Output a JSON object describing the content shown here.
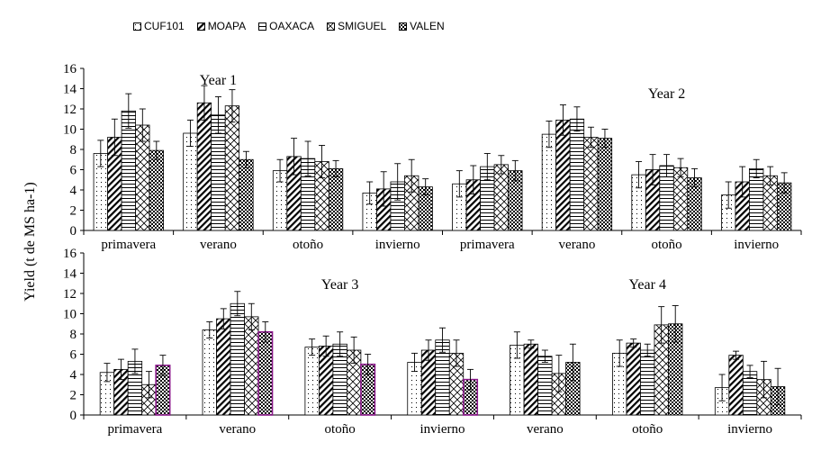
{
  "chart_data": {
    "type": "bar",
    "ylabel": "Yield (t de MS ha-1)",
    "ylim": [
      0,
      16
    ],
    "yticks": [
      0,
      2,
      4,
      6,
      8,
      10,
      12,
      14,
      16
    ],
    "legend": {
      "placement": "top",
      "series": [
        {
          "name": "CUF101",
          "pattern": "dots"
        },
        {
          "name": "MOAPA",
          "pattern": "diagonal"
        },
        {
          "name": "OAXACA",
          "pattern": "horizontal"
        },
        {
          "name": "SMIGUEL",
          "pattern": "crosshatch"
        },
        {
          "name": "VALEN",
          "pattern": "checker"
        }
      ]
    },
    "panels": [
      {
        "annotations": [
          {
            "text": "Year 1",
            "x_group": 1
          },
          {
            "text": "Year 2",
            "x_group": 6
          }
        ],
        "groups": [
          {
            "label": "primavera",
            "values": [
              7.6,
              9.2,
              11.8,
              10.4,
              7.9
            ],
            "errors": [
              1.3,
              1.8,
              1.7,
              1.6,
              0.9
            ]
          },
          {
            "label": "verano",
            "values": [
              9.6,
              12.6,
              11.4,
              12.3,
              7.0
            ],
            "errors": [
              1.3,
              1.7,
              1.8,
              1.6,
              0.8
            ]
          },
          {
            "label": "otoño",
            "values": [
              5.9,
              7.3,
              7.1,
              6.8,
              6.1
            ],
            "errors": [
              1.1,
              1.8,
              1.7,
              1.6,
              0.8
            ]
          },
          {
            "label": "invierno",
            "values": [
              3.7,
              4.1,
              4.8,
              5.4,
              4.3
            ],
            "errors": [
              1.1,
              1.7,
              1.8,
              1.6,
              0.8
            ]
          },
          {
            "label": "primavera",
            "values": [
              4.6,
              5.0,
              6.3,
              6.5,
              5.9
            ],
            "errors": [
              1.3,
              1.4,
              1.3,
              0.9,
              1.0
            ]
          },
          {
            "label": "verano",
            "values": [
              9.5,
              10.9,
              11.0,
              9.2,
              9.1
            ],
            "errors": [
              1.3,
              1.5,
              1.2,
              1.0,
              0.9
            ]
          },
          {
            "label": "otoño",
            "values": [
              5.5,
              6.0,
              6.4,
              6.2,
              5.2
            ],
            "errors": [
              1.3,
              1.5,
              1.1,
              0.9,
              0.9
            ]
          },
          {
            "label": "invierno",
            "values": [
              3.5,
              4.8,
              6.1,
              5.4,
              4.7
            ],
            "errors": [
              1.3,
              1.5,
              0.9,
              0.9,
              1.0
            ]
          }
        ]
      },
      {
        "annotations": [
          {
            "text": "Year 3",
            "x_group": 2
          },
          {
            "text": "Year 4",
            "x_group": 5
          }
        ],
        "groups": [
          {
            "label": "primavera",
            "values": [
              4.2,
              4.5,
              5.3,
              3.0,
              4.9
            ],
            "errors": [
              0.9,
              1.0,
              1.2,
              1.3,
              1.0
            ],
            "highlight": [
              4
            ]
          },
          {
            "label": "verano",
            "values": [
              8.4,
              9.5,
              11.0,
              9.7,
              8.2
            ],
            "errors": [
              0.8,
              1.0,
              1.2,
              1.3,
              1.0
            ],
            "highlight": [
              4
            ]
          },
          {
            "label": "otoño",
            "values": [
              6.7,
              6.8,
              7.0,
              6.4,
              5.0
            ],
            "errors": [
              0.8,
              1.0,
              1.2,
              1.3,
              1.0
            ],
            "highlight": [
              4
            ]
          },
          {
            "label": "invierno",
            "values": [
              5.2,
              6.4,
              7.4,
              6.1,
              3.5
            ],
            "errors": [
              0.9,
              1.0,
              1.2,
              1.3,
              1.0
            ],
            "highlight": [
              4
            ]
          },
          {
            "label": "verano",
            "values": [
              6.9,
              7.0,
              5.8,
              4.1,
              5.2
            ],
            "errors": [
              1.3,
              0.4,
              0.6,
              1.8,
              1.8
            ]
          },
          {
            "label": "otoño",
            "values": [
              6.1,
              7.1,
              6.4,
              8.9,
              9.0
            ],
            "errors": [
              1.3,
              0.4,
              0.6,
              1.8,
              1.8
            ]
          },
          {
            "label": "invierno",
            "values": [
              2.7,
              5.9,
              4.3,
              3.5,
              2.8
            ],
            "errors": [
              1.3,
              0.4,
              0.6,
              1.8,
              1.8
            ]
          }
        ]
      }
    ],
    "colors": {
      "bar_stroke": "#000000",
      "highlight_stroke": "#8b1a8b"
    }
  }
}
